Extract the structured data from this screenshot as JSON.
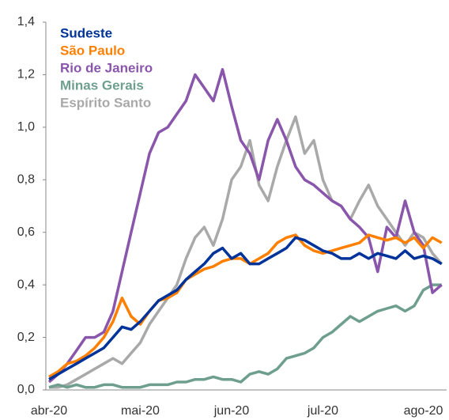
{
  "chart_data": {
    "type": "line",
    "categories": [
      "abr-20",
      null,
      null,
      null,
      null,
      null,
      null,
      null,
      null,
      null,
      "mai-20",
      null,
      null,
      null,
      null,
      null,
      null,
      null,
      null,
      null,
      "jun-20",
      null,
      null,
      null,
      null,
      null,
      null,
      null,
      null,
      null,
      "jul-20",
      null,
      null,
      null,
      null,
      null,
      null,
      null,
      null,
      null,
      null,
      "ago-20",
      null,
      null
    ],
    "series": [
      {
        "name": "Sudeste",
        "color": "#003399",
        "values": [
          0.04,
          0.06,
          0.08,
          0.1,
          0.12,
          0.14,
          0.16,
          0.2,
          0.24,
          0.23,
          0.26,
          0.3,
          0.34,
          0.36,
          0.38,
          0.42,
          0.45,
          0.48,
          0.52,
          0.54,
          0.5,
          0.52,
          0.48,
          0.48,
          0.5,
          0.52,
          0.54,
          0.58,
          0.57,
          0.55,
          0.53,
          0.52,
          0.5,
          0.5,
          0.52,
          0.5,
          0.52,
          0.51,
          0.5,
          0.53,
          0.5,
          0.51,
          0.5,
          0.48
        ]
      },
      {
        "name": "São Paulo",
        "color": "#ff8000",
        "values": [
          0.05,
          0.07,
          0.1,
          0.11,
          0.13,
          0.16,
          0.2,
          0.26,
          0.35,
          0.28,
          0.25,
          0.3,
          0.34,
          0.35,
          0.37,
          0.42,
          0.44,
          0.46,
          0.47,
          0.49,
          0.5,
          0.5,
          0.48,
          0.5,
          0.52,
          0.56,
          0.58,
          0.59,
          0.55,
          0.53,
          0.52,
          0.53,
          0.54,
          0.55,
          0.56,
          0.59,
          0.58,
          0.57,
          0.58,
          0.56,
          0.58,
          0.54,
          0.58,
          0.56
        ]
      },
      {
        "name": "Rio de Janeiro",
        "color": "#8a56ac",
        "values": [
          0.03,
          0.06,
          0.1,
          0.15,
          0.2,
          0.2,
          0.22,
          0.3,
          0.45,
          0.6,
          0.75,
          0.9,
          0.98,
          1.0,
          1.05,
          1.1,
          1.2,
          1.15,
          1.1,
          1.22,
          1.08,
          0.95,
          0.9,
          0.8,
          0.95,
          1.03,
          0.95,
          0.85,
          0.8,
          0.78,
          0.75,
          0.72,
          0.7,
          0.65,
          0.62,
          0.58,
          0.45,
          0.62,
          0.58,
          0.72,
          0.6,
          0.55,
          0.37,
          0.4
        ]
      },
      {
        "name": "Minas Gerais",
        "color": "#6e9e8e",
        "values": [
          0.01,
          0.02,
          0.01,
          0.02,
          0.01,
          0.01,
          0.02,
          0.02,
          0.01,
          0.01,
          0.01,
          0.02,
          0.02,
          0.02,
          0.03,
          0.03,
          0.04,
          0.04,
          0.05,
          0.04,
          0.04,
          0.03,
          0.06,
          0.07,
          0.06,
          0.08,
          0.12,
          0.13,
          0.14,
          0.16,
          0.2,
          0.22,
          0.25,
          0.28,
          0.26,
          0.28,
          0.3,
          0.31,
          0.32,
          0.3,
          0.32,
          0.38,
          0.4,
          0.4
        ]
      },
      {
        "name": "Espírito Santo",
        "color": "#a9a9a9",
        "values": [
          0.01,
          0.01,
          0.02,
          0.04,
          0.06,
          0.08,
          0.1,
          0.12,
          0.1,
          0.14,
          0.18,
          0.25,
          0.3,
          0.35,
          0.4,
          0.5,
          0.58,
          0.62,
          0.55,
          0.65,
          0.8,
          0.85,
          0.95,
          0.78,
          0.72,
          0.85,
          0.95,
          1.04,
          0.9,
          0.95,
          0.8,
          0.72,
          0.7,
          0.65,
          0.72,
          0.78,
          0.7,
          0.65,
          0.6,
          0.55,
          0.6,
          0.58,
          0.52,
          0.48
        ]
      }
    ],
    "ylim": [
      0,
      1.4
    ],
    "yticks": [
      {
        "value": 0,
        "label": "0,0"
      },
      {
        "value": 0.2,
        "label": "0,2"
      },
      {
        "value": 0.4,
        "label": "0,4"
      },
      {
        "value": 0.6,
        "label": "0,6"
      },
      {
        "value": 0.8,
        "label": "0,8"
      },
      {
        "value": 1.0,
        "label": "1,0"
      },
      {
        "value": 1.2,
        "label": "1,2"
      },
      {
        "value": 1.4,
        "label": "1,4"
      }
    ],
    "legend": "upper left",
    "grid": false
  }
}
